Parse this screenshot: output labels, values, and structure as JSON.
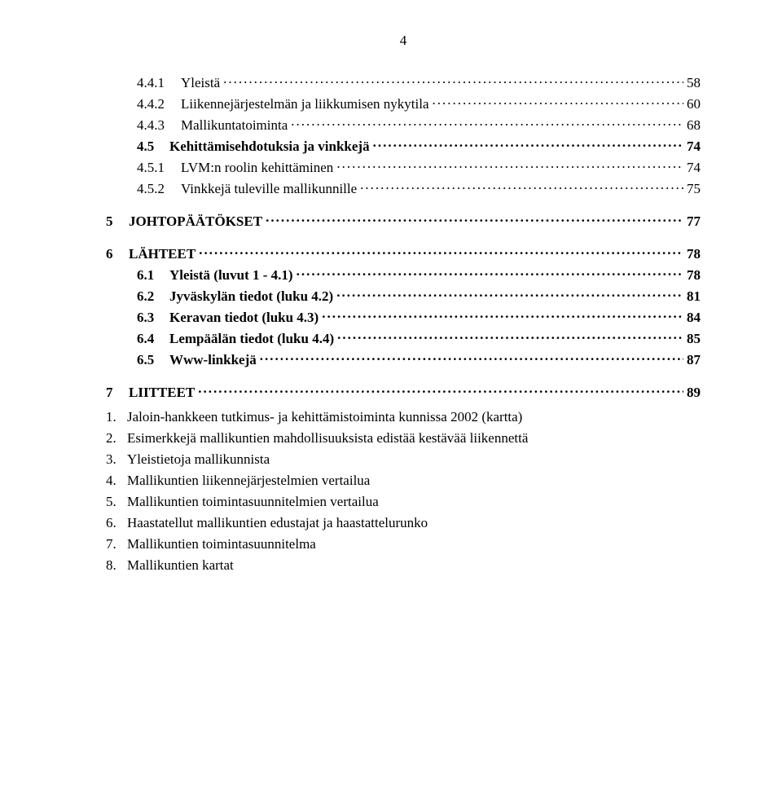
{
  "page_number": "4",
  "toc": [
    {
      "level": 3,
      "num": "4.4.1",
      "title": "Yleistä",
      "page": "58"
    },
    {
      "level": 3,
      "num": "4.4.2",
      "title": "Liikennejärjestelmän ja liikkumisen nykytila",
      "page": "60"
    },
    {
      "level": 3,
      "num": "4.4.3",
      "title": "Mallikuntatoiminta",
      "page": "68"
    },
    {
      "level": 2,
      "num": "4.5",
      "title": "Kehittämisehdotuksia ja vinkkejä",
      "page": "74"
    },
    {
      "level": 3,
      "num": "4.5.1",
      "title": "LVM:n roolin kehittäminen",
      "page": "74"
    },
    {
      "level": 3,
      "num": "4.5.2",
      "title": "Vinkkejä tuleville mallikunnille",
      "page": "75"
    },
    {
      "level": 1,
      "num": "5",
      "title": "JOHTOPÄÄTÖKSET",
      "page": "77"
    },
    {
      "level": 1,
      "num": "6",
      "title": "LÄHTEET",
      "page": "78"
    },
    {
      "level": 2,
      "num": "6.1",
      "title": "Yleistä (luvut 1 - 4.1)",
      "page": "78"
    },
    {
      "level": 2,
      "num": "6.2",
      "title": "Jyväskylän tiedot (luku 4.2)",
      "page": "81"
    },
    {
      "level": 2,
      "num": "6.3",
      "title": "Keravan tiedot (luku 4.3)",
      "page": "84"
    },
    {
      "level": 2,
      "num": "6.4",
      "title": "Lempäälän tiedot (luku 4.4)",
      "page": "85"
    },
    {
      "level": 2,
      "num": "6.5",
      "title": "Www-linkkejä",
      "page": "87"
    },
    {
      "level": 1,
      "num": "7",
      "title": "LIITTEET",
      "page": "89"
    }
  ],
  "list": [
    {
      "num": "1.",
      "text": "Jaloin-hankkeen tutkimus- ja kehittämistoiminta kunnissa 2002 (kartta)"
    },
    {
      "num": "2.",
      "text": "Esimerkkejä mallikuntien mahdollisuuksista edistää kestävää liikennettä"
    },
    {
      "num": "3.",
      "text": "Yleistietoja mallikunnista"
    },
    {
      "num": "4.",
      "text": "Mallikuntien liikennejärjestelmien vertailua"
    },
    {
      "num": "5.",
      "text": "Mallikuntien toimintasuunnitelmien vertailua"
    },
    {
      "num": "6.",
      "text": "Haastatellut mallikuntien edustajat ja haastattelurunko"
    },
    {
      "num": "7.",
      "text": "Mallikuntien toimintasuunnitelma"
    },
    {
      "num": "8.",
      "text": "Mallikuntien kartat"
    }
  ]
}
